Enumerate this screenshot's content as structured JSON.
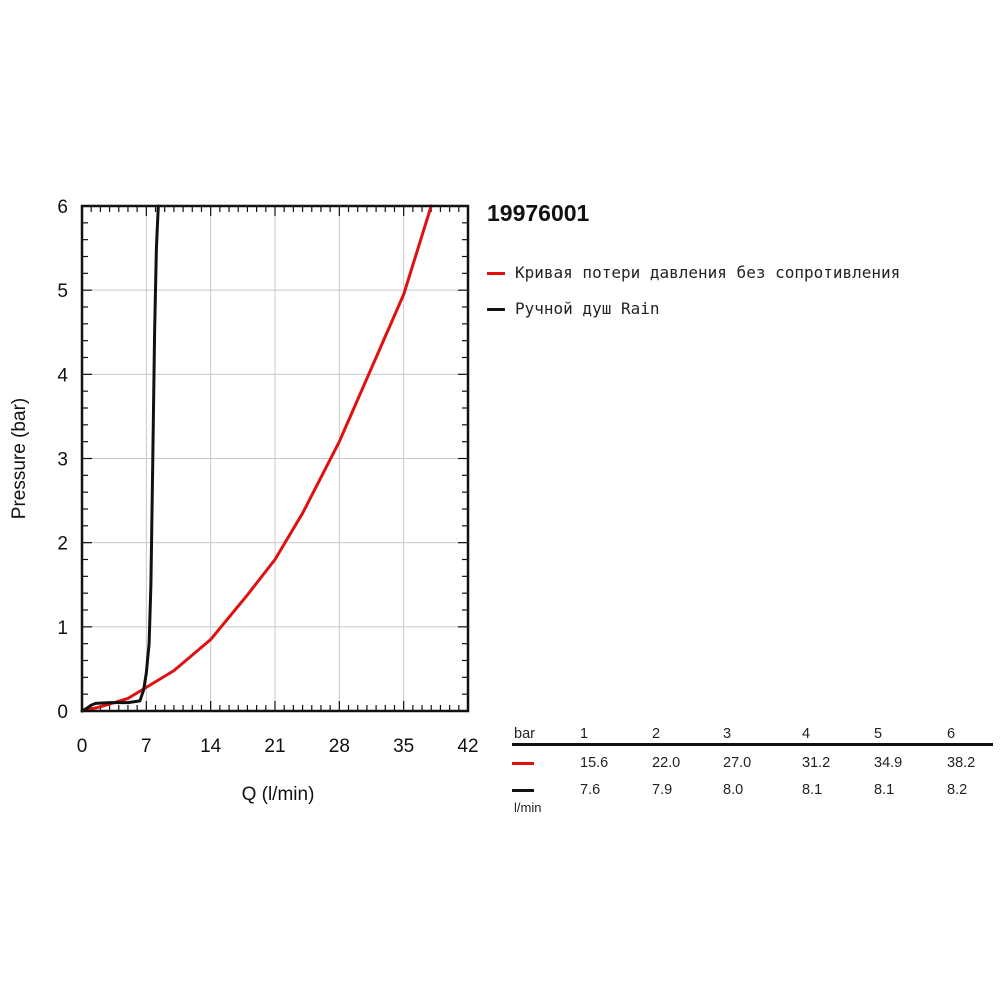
{
  "chart_data": {
    "type": "line",
    "title": "19976001",
    "xlabel": "Q (l/min)",
    "ylabel": "Pressure (bar)",
    "xlim": [
      0,
      42
    ],
    "ylim": [
      0,
      6
    ],
    "x_ticks": [
      0,
      7,
      14,
      21,
      28,
      35,
      42
    ],
    "y_ticks": [
      0,
      1,
      2,
      3,
      4,
      5,
      6
    ],
    "grid": true,
    "legend_position": "right",
    "series": [
      {
        "name": "Кривая потери давления без сопротивления",
        "color": "#e01010",
        "x": [
          0,
          2,
          5,
          7,
          10,
          14,
          18,
          21,
          24,
          28,
          31,
          35,
          38
        ],
        "y": [
          0,
          0.05,
          0.15,
          0.28,
          0.48,
          0.85,
          1.38,
          1.8,
          2.35,
          3.2,
          3.95,
          4.95,
          6.0
        ]
      },
      {
        "name": "Ручной душ Rain",
        "color": "#111111",
        "x": [
          0,
          0.5,
          1,
          1.5,
          3,
          5,
          6.3,
          6.7,
          7.0,
          7.3,
          7.5,
          7.7,
          7.9,
          8.1,
          8.3
        ],
        "y": [
          0,
          0.03,
          0.07,
          0.09,
          0.1,
          0.1,
          0.12,
          0.25,
          0.45,
          0.8,
          1.5,
          3.0,
          4.5,
          5.5,
          6.0
        ]
      }
    ]
  },
  "flow_table": {
    "header_label": "bar",
    "pressures": [
      "1",
      "2",
      "3",
      "4",
      "5",
      "6"
    ],
    "rows": [
      {
        "color": "#e01010",
        "values": [
          "15.6",
          "22.0",
          "27.0",
          "31.2",
          "34.9",
          "38.2"
        ]
      },
      {
        "color": "#111111",
        "values": [
          "7.6",
          "7.9",
          "8.0",
          "8.1",
          "8.1",
          "8.2"
        ]
      }
    ],
    "unit_label": "l/min"
  }
}
